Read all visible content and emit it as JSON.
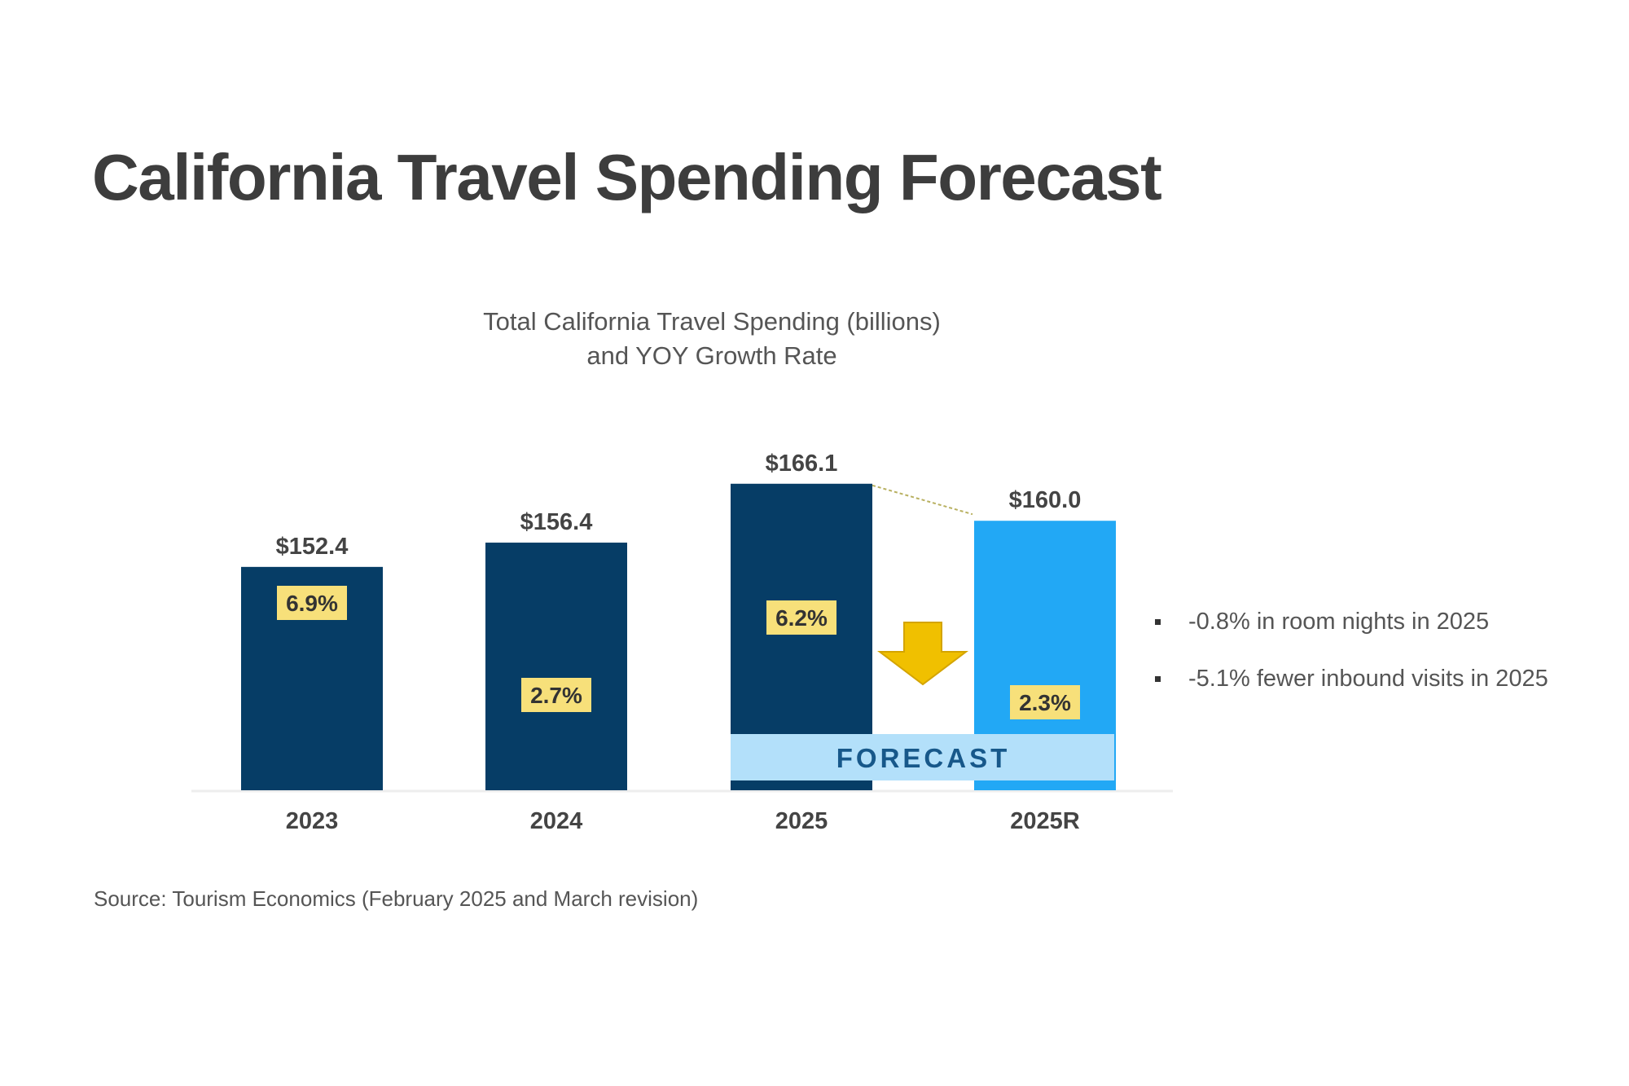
{
  "title": "California Travel Spending Forecast",
  "chart_data": {
    "type": "bar",
    "title": [
      "Total California Travel Spending (billions)",
      "and YOY Growth Rate"
    ],
    "categories": [
      "2023",
      "2024",
      "2025",
      "2025R"
    ],
    "values": [
      152.4,
      156.4,
      166.1,
      160.0
    ],
    "value_labels": [
      "$152.4",
      "$156.4",
      "$166.1",
      "$160.0"
    ],
    "growth_labels": [
      "6.9%",
      "2.7%",
      "6.2%",
      "2.3%"
    ],
    "growth_values": [
      6.9,
      2.7,
      6.2,
      2.3
    ],
    "bar_colors": [
      "#063d66",
      "#063d66",
      "#063d66",
      "#22a8f5"
    ],
    "forecast_label": "FORECAST",
    "forecast_categories": [
      "2025",
      "2025R"
    ],
    "xlabel": "",
    "ylabel": "",
    "grid": false,
    "legend": "none"
  },
  "notes": [
    "-0.8% in room nights in 2025",
    "-5.1% fewer inbound visits in 2025"
  ],
  "source": "Source: Tourism Economics (February 2025 and March revision)",
  "colors": {
    "dark_bar": "#063d66",
    "revised_bar": "#22a8f5",
    "badge": "#f7e07a",
    "forecast_band": "#b3e0fa",
    "arrow": "#f0c000"
  }
}
